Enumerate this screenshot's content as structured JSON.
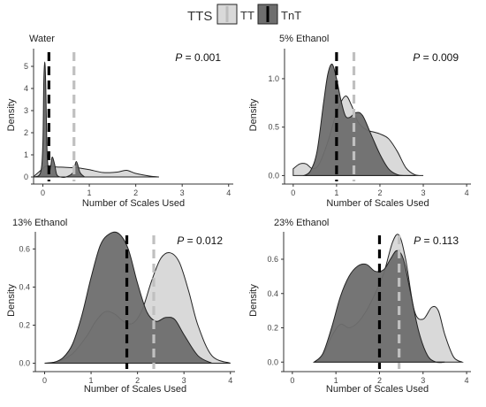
{
  "legend": {
    "title": "TTS",
    "items": [
      {
        "label": "TT",
        "fill": "#d9d9d9",
        "line": "#bdbdbd"
      },
      {
        "label": "TnT",
        "fill": "#6e6e6e",
        "line": "#000000"
      }
    ]
  },
  "colors": {
    "tt_fill": "#d9d9d9",
    "tnt_fill": "#6e6e6e",
    "tt_mean_line": "#c0c0c0",
    "tnt_mean_line": "#000000",
    "outline": "#222222",
    "axis": "#333333",
    "text": "#444444"
  },
  "chart_data": [
    {
      "type": "area",
      "title": "Water",
      "annotation": {
        "prefix": "P",
        "text": " = 0.001"
      },
      "xlabel": "Number of Scales Used",
      "ylabel": "Density",
      "xlim": [
        -0.2,
        4.1
      ],
      "ylim": [
        -0.2,
        5.8
      ],
      "xticks": [
        "0",
        "1",
        "2",
        "3",
        "4"
      ],
      "yticks": [
        "0",
        "1",
        "2",
        "3",
        "4",
        "5"
      ],
      "grid": false,
      "legend_position": "top",
      "series": [
        {
          "name": "TT",
          "x": [
            -0.2,
            0.0,
            0.03,
            0.08,
            0.13,
            0.2,
            0.3,
            0.45,
            0.6,
            0.7,
            0.8,
            1.0,
            1.3,
            1.6,
            1.8,
            2.0,
            2.3,
            2.5
          ],
          "y": [
            0.02,
            0.38,
            0.45,
            0.5,
            0.5,
            0.48,
            0.45,
            0.44,
            0.42,
            0.42,
            0.4,
            0.33,
            0.2,
            0.22,
            0.3,
            0.16,
            0.04,
            0.0
          ],
          "mean": 0.67
        },
        {
          "name": "TnT",
          "x": [
            -0.2,
            -0.05,
            0.0,
            0.02,
            0.04,
            0.06,
            0.09,
            0.13,
            0.17,
            0.2,
            0.25,
            0.3,
            0.38,
            0.5,
            0.65,
            0.72,
            0.8,
            0.9
          ],
          "y": [
            0.0,
            0.2,
            1.5,
            4.3,
            5.2,
            4.3,
            1.2,
            0.2,
            0.5,
            0.9,
            0.6,
            0.1,
            0.0,
            0.0,
            0.2,
            0.7,
            0.2,
            0.0
          ],
          "mean": 0.13
        }
      ]
    },
    {
      "type": "area",
      "title": "5% Ethanol",
      "annotation": {
        "prefix": "P",
        "text": " = 0.009"
      },
      "xlabel": "Number of Scales Used",
      "ylabel": "Density",
      "xlim": [
        -0.2,
        4.1
      ],
      "ylim": [
        -0.06,
        1.31
      ],
      "xticks": [
        "0",
        "1",
        "2",
        "3",
        "4"
      ],
      "yticks": [
        "0.0",
        "0.5",
        "1.0"
      ],
      "grid": false,
      "legend_position": "top",
      "series": [
        {
          "name": "TT",
          "x": [
            0.0,
            0.15,
            0.3,
            0.45,
            0.6,
            0.8,
            1.0,
            1.2,
            1.35,
            1.5,
            1.7,
            1.85,
            2.0,
            2.2,
            2.4,
            2.6,
            2.8,
            3.0
          ],
          "y": [
            0.07,
            0.12,
            0.12,
            0.07,
            0.12,
            0.35,
            0.65,
            0.82,
            0.72,
            0.55,
            0.47,
            0.45,
            0.43,
            0.38,
            0.25,
            0.08,
            0.01,
            0.0
          ],
          "mean": 1.4
        },
        {
          "name": "TnT",
          "x": [
            0.25,
            0.4,
            0.55,
            0.7,
            0.8,
            0.9,
            1.0,
            1.1,
            1.2,
            1.3,
            1.45,
            1.6,
            1.8,
            2.0,
            2.2,
            2.4,
            2.6,
            2.8
          ],
          "y": [
            0.0,
            0.05,
            0.25,
            0.75,
            1.05,
            1.15,
            1.0,
            0.78,
            0.62,
            0.6,
            0.65,
            0.62,
            0.42,
            0.22,
            0.07,
            0.01,
            0.0,
            0.0
          ],
          "mean": 1.0
        }
      ]
    },
    {
      "type": "area",
      "title": "13% Ethanol",
      "annotation": {
        "prefix": "P",
        "text": " = 0.012"
      },
      "xlabel": "Number of Scales Used",
      "ylabel": "Density",
      "xlim": [
        -0.2,
        4.1
      ],
      "ylim": [
        -0.03,
        0.69
      ],
      "xticks": [
        "0",
        "1",
        "2",
        "3",
        "4"
      ],
      "yticks": [
        "0.0",
        "0.2",
        "0.4",
        "0.6"
      ],
      "grid": false,
      "legend_position": "top",
      "series": [
        {
          "name": "TT",
          "x": [
            0.0,
            0.3,
            0.6,
            0.9,
            1.1,
            1.3,
            1.5,
            1.7,
            1.9,
            2.1,
            2.3,
            2.5,
            2.7,
            2.9,
            3.1,
            3.3,
            3.6,
            4.0
          ],
          "y": [
            0.0,
            0.01,
            0.05,
            0.14,
            0.22,
            0.27,
            0.26,
            0.22,
            0.21,
            0.28,
            0.43,
            0.55,
            0.58,
            0.53,
            0.38,
            0.2,
            0.04,
            0.0
          ],
          "mean": 2.35
        },
        {
          "name": "TnT",
          "x": [
            0.0,
            0.2,
            0.4,
            0.6,
            0.8,
            1.0,
            1.2,
            1.4,
            1.6,
            1.8,
            2.0,
            2.2,
            2.4,
            2.6,
            2.8,
            3.0,
            3.3,
            3.6
          ],
          "y": [
            0.0,
            0.005,
            0.03,
            0.1,
            0.25,
            0.45,
            0.62,
            0.68,
            0.68,
            0.6,
            0.42,
            0.27,
            0.22,
            0.24,
            0.23,
            0.15,
            0.04,
            0.0
          ],
          "mean": 1.77
        }
      ]
    },
    {
      "type": "area",
      "title": "23% Ethanol",
      "annotation": {
        "prefix": "P",
        "text": " = 0.113"
      },
      "xlabel": "Number of Scales Used",
      "ylabel": "Density",
      "xlim": [
        -0.2,
        4.1
      ],
      "ylim": [
        -0.04,
        0.76
      ],
      "xticks": [
        "0",
        "1",
        "2",
        "3",
        "4"
      ],
      "yticks": [
        "0.0",
        "0.2",
        "0.4",
        "0.6"
      ],
      "grid": false,
      "legend_position": "top",
      "series": [
        {
          "name": "TT",
          "x": [
            0.5,
            0.7,
            0.9,
            1.1,
            1.3,
            1.5,
            1.7,
            1.9,
            2.1,
            2.3,
            2.45,
            2.6,
            2.8,
            3.0,
            3.2,
            3.35,
            3.5,
            3.7,
            3.9
          ],
          "y": [
            0.0,
            0.04,
            0.15,
            0.22,
            0.2,
            0.23,
            0.3,
            0.4,
            0.52,
            0.7,
            0.74,
            0.6,
            0.3,
            0.25,
            0.32,
            0.3,
            0.16,
            0.03,
            0.0
          ],
          "mean": 2.45
        },
        {
          "name": "TnT",
          "x": [
            0.5,
            0.7,
            0.9,
            1.1,
            1.3,
            1.5,
            1.7,
            1.9,
            2.1,
            2.25,
            2.4,
            2.55,
            2.7,
            2.9,
            3.1,
            3.3,
            3.5
          ],
          "y": [
            0.0,
            0.05,
            0.2,
            0.38,
            0.5,
            0.56,
            0.57,
            0.53,
            0.54,
            0.6,
            0.65,
            0.6,
            0.42,
            0.18,
            0.04,
            0.0,
            0.0
          ],
          "mean": 2.0
        }
      ]
    }
  ]
}
